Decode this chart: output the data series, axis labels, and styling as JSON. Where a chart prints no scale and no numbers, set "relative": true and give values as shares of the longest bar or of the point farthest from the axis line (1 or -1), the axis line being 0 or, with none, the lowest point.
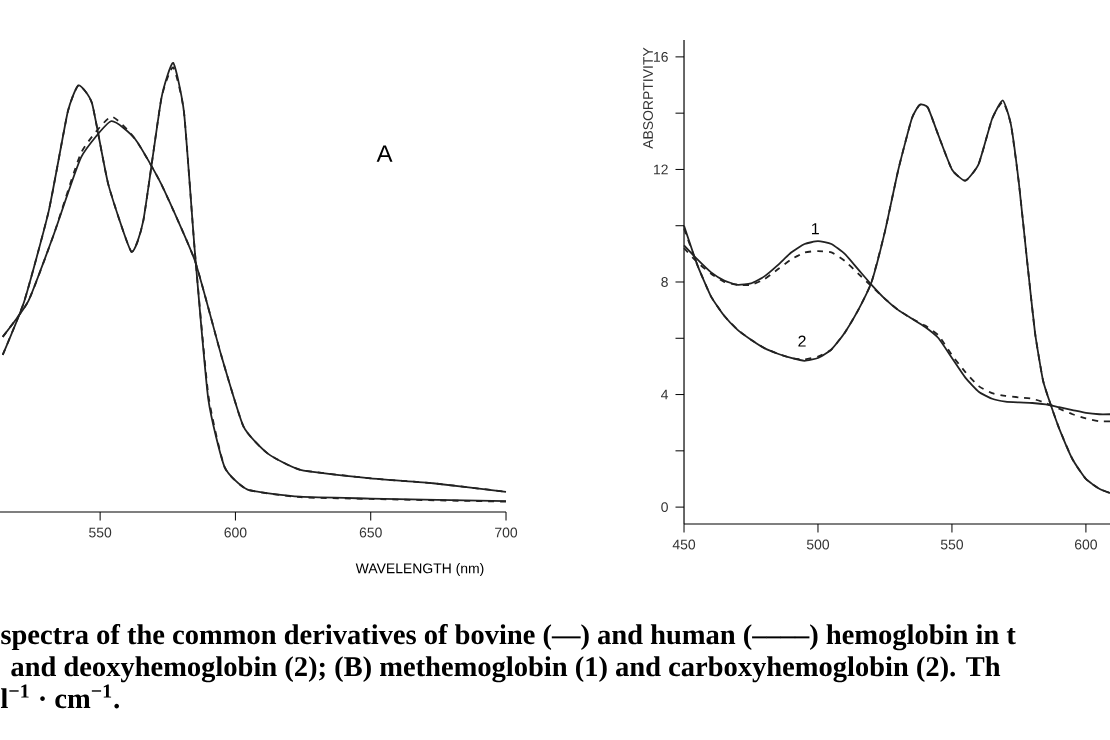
{
  "chart_data": [
    {
      "type": "line",
      "relative": true,
      "xlabel": "WAVELENGTH  (nm)",
      "tick_labels": "x",
      "xlim": [
        513,
        700
      ],
      "xticks": [
        550,
        600,
        650,
        700
      ],
      "annotations": [
        "A",
        "spectra of the common derivatives of bovine (—) and human (––––) hemoglobin in t",
        "and deoxyhemoglobin (2); (B) methemoglobin (1) and carboxyhemoglobin (2). Th",
        "l$^{−1}$ · cm$^{−1}$."
      ],
      "series": [
        {
          "color": "#222222",
          "x": [
            514,
            522,
            531,
            538,
            542,
            547,
            553,
            561.5,
            566,
            572.6,
            577,
            581,
            585,
            590,
            596,
            604.5,
            624,
            650,
            700
          ],
          "values": [
            0.35,
            0.47,
            0.67,
            0.89,
            0.95,
            0.91,
            0.73,
            0.58,
            0.65,
            0.92,
            1.0,
            0.89,
            0.58,
            0.25,
            0.1,
            0.05,
            0.034,
            0.03,
            0.024
          ]
        },
        {
          "color": "#222222",
          "line_style": "dashed",
          "x": [
            514,
            522,
            531,
            538,
            542,
            547,
            553,
            561.5,
            566,
            572.6,
            577,
            581,
            585,
            590,
            596,
            604.5,
            624,
            650,
            700
          ],
          "values": [
            0.35,
            0.47,
            0.67,
            0.89,
            0.95,
            0.91,
            0.73,
            0.58,
            0.65,
            0.92,
            0.99,
            0.89,
            0.58,
            0.26,
            0.1,
            0.05,
            0.033,
            0.029,
            0.023
          ]
        },
        {
          "color": "#222222",
          "x": [
            514,
            523.5,
            533,
            543,
            554,
            563,
            572.6,
            585,
            594.7,
            603,
            612,
            624,
            650,
            673,
            700
          ],
          "values": [
            0.39,
            0.47,
            0.62,
            0.79,
            0.87,
            0.83,
            0.73,
            0.56,
            0.35,
            0.19,
            0.13,
            0.094,
            0.075,
            0.064,
            0.045
          ]
        },
        {
          "color": "#222222",
          "line_style": "dashed",
          "x": [
            514,
            523.5,
            533,
            543,
            554,
            563,
            572.6,
            585,
            594.7,
            603,
            612,
            624,
            650,
            673,
            700
          ],
          "values": [
            0.39,
            0.47,
            0.62,
            0.8,
            0.88,
            0.83,
            0.73,
            0.56,
            0.35,
            0.19,
            0.13,
            0.094,
            0.075,
            0.064,
            0.045
          ]
        }
      ]
    },
    {
      "type": "line",
      "ylabel": "ABSORPTIVITY",
      "xlim": [
        450,
        609
      ],
      "ylim": [
        -0.6,
        16.6
      ],
      "xticks": [
        450,
        500,
        550,
        600
      ],
      "yticks": [
        0,
        {
          "value": 2,
          "label": null
        },
        4,
        {
          "value": 6,
          "label": null
        },
        8,
        {
          "value": 10,
          "label": null
        },
        12,
        {
          "value": 14,
          "label": null
        },
        16
      ],
      "annotations": [
        "1",
        "2"
      ],
      "series": [
        {
          "color": "#222222",
          "x": [
            450,
            455,
            460,
            465,
            470,
            475,
            480,
            485,
            490,
            495,
            500,
            505,
            510,
            515,
            520,
            525,
            530,
            535,
            540,
            545,
            550,
            555,
            560,
            565,
            570,
            575,
            580,
            585,
            590,
            595,
            600,
            605,
            609
          ],
          "values": [
            9.3,
            8.8,
            8.35,
            8.05,
            7.9,
            7.95,
            8.2,
            8.6,
            9.05,
            9.35,
            9.45,
            9.35,
            9.0,
            8.45,
            7.9,
            7.4,
            7.0,
            6.7,
            6.4,
            6.0,
            5.3,
            4.6,
            4.1,
            3.85,
            3.75,
            3.72,
            3.7,
            3.65,
            3.55,
            3.45,
            3.35,
            3.3,
            3.3
          ]
        },
        {
          "color": "#222222",
          "line_style": "dashed",
          "x": [
            450,
            455,
            460,
            465,
            470,
            475,
            480,
            485,
            490,
            495,
            500,
            505,
            510,
            515,
            520,
            525,
            530,
            535,
            540,
            545,
            550,
            555,
            560,
            565,
            570,
            575,
            580,
            585,
            590,
            595,
            600,
            605,
            609
          ],
          "values": [
            9.2,
            8.7,
            8.3,
            8.0,
            7.9,
            7.9,
            8.1,
            8.45,
            8.8,
            9.05,
            9.1,
            9.05,
            8.75,
            8.3,
            7.85,
            7.4,
            7.0,
            6.7,
            6.45,
            6.1,
            5.4,
            4.8,
            4.3,
            4.05,
            3.95,
            3.9,
            3.85,
            3.7,
            3.5,
            3.3,
            3.15,
            3.05,
            3.05
          ]
        },
        {
          "color": "#222222",
          "x": [
            450,
            455,
            460,
            465,
            470,
            475,
            480,
            485,
            490,
            495,
            500,
            505,
            510,
            515,
            520,
            525,
            530,
            535,
            538,
            541,
            545,
            550,
            555,
            560,
            565,
            569,
            572,
            575,
            578,
            581,
            584,
            587,
            590,
            595,
            600,
            605,
            609
          ],
          "values": [
            10.0,
            8.6,
            7.5,
            6.8,
            6.3,
            5.95,
            5.65,
            5.45,
            5.3,
            5.2,
            5.3,
            5.6,
            6.2,
            7.0,
            8.0,
            9.8,
            12.0,
            13.8,
            14.3,
            14.2,
            13.2,
            12.0,
            11.6,
            12.2,
            13.8,
            14.45,
            13.6,
            11.5,
            8.8,
            6.2,
            4.5,
            3.6,
            2.8,
            1.7,
            1.0,
            0.65,
            0.5
          ]
        },
        {
          "color": "#222222",
          "line_style": "dashed",
          "x": [
            450,
            455,
            460,
            465,
            470,
            475,
            480,
            485,
            490,
            495,
            500,
            505,
            510,
            515,
            520,
            525,
            530,
            535,
            538,
            541,
            545,
            550,
            555,
            560,
            565,
            569,
            572,
            575,
            578,
            581,
            584,
            587,
            590,
            595,
            600,
            605,
            609
          ],
          "values": [
            9.9,
            8.6,
            7.5,
            6.8,
            6.3,
            5.95,
            5.65,
            5.45,
            5.3,
            5.25,
            5.35,
            5.6,
            6.2,
            7.0,
            8.0,
            9.8,
            12.0,
            13.8,
            14.3,
            14.2,
            13.2,
            12.0,
            11.6,
            12.2,
            13.8,
            14.4,
            13.6,
            11.5,
            8.8,
            6.2,
            4.5,
            3.6,
            2.8,
            1.7,
            1.0,
            0.65,
            0.5
          ]
        }
      ]
    }
  ]
}
